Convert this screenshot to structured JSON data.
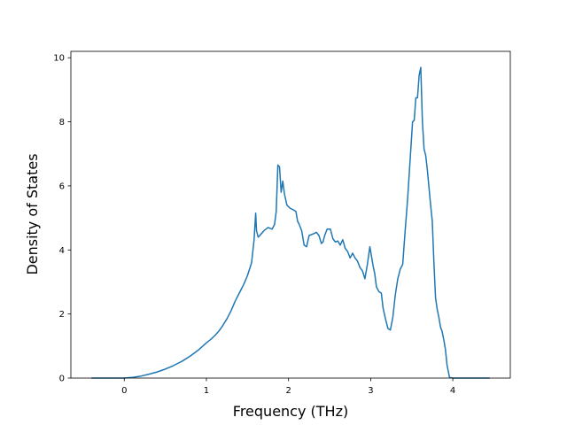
{
  "chart_data": {
    "type": "line",
    "xlabel": "Frequency (THz)",
    "ylabel": "Density of States",
    "xlim": [
      -0.65,
      4.7
    ],
    "ylim": [
      0,
      10.2
    ],
    "xticks": [
      0,
      1,
      2,
      3,
      4
    ],
    "yticks": [
      0,
      2,
      4,
      6,
      8,
      10
    ],
    "grid": false,
    "line_color": "#1f77b4",
    "series": [
      {
        "x": [
          -0.4,
          -0.2,
          0.0,
          0.1,
          0.2,
          0.3,
          0.4,
          0.5,
          0.6,
          0.7,
          0.8,
          0.9,
          1.0,
          1.05,
          1.1,
          1.15,
          1.2,
          1.25,
          1.3,
          1.35,
          1.4,
          1.42,
          1.45,
          1.5,
          1.55,
          1.58,
          1.6,
          1.61,
          1.63,
          1.65,
          1.7,
          1.75,
          1.8,
          1.83,
          1.85,
          1.87,
          1.89,
          1.91,
          1.93,
          1.95,
          1.98,
          2.02,
          2.06,
          2.09,
          2.11,
          2.13,
          2.16,
          2.19,
          2.22,
          2.25,
          2.3,
          2.34,
          2.37,
          2.4,
          2.42,
          2.44,
          2.47,
          2.51,
          2.54,
          2.57,
          2.6,
          2.63,
          2.66,
          2.69,
          2.72,
          2.75,
          2.78,
          2.81,
          2.84,
          2.87,
          2.9,
          2.93,
          2.96,
          2.99,
          3.01,
          3.03,
          3.05,
          3.07,
          3.1,
          3.13,
          3.15,
          3.18,
          3.21,
          3.24,
          3.27,
          3.3,
          3.33,
          3.36,
          3.39,
          3.42,
          3.45,
          3.47,
          3.49,
          3.51,
          3.53,
          3.55,
          3.57,
          3.59,
          3.61,
          3.63,
          3.65,
          3.67,
          3.69,
          3.71,
          3.73,
          3.75,
          3.77,
          3.79,
          3.81,
          3.83,
          3.85,
          3.87,
          3.89,
          3.91,
          3.93,
          3.96,
          4.0,
          4.02,
          4.04,
          4.06,
          4.2,
          4.45
        ],
        "y": [
          0,
          0,
          0,
          0.02,
          0.06,
          0.12,
          0.19,
          0.28,
          0.39,
          0.52,
          0.68,
          0.87,
          1.1,
          1.2,
          1.32,
          1.46,
          1.64,
          1.85,
          2.1,
          2.4,
          2.65,
          2.75,
          2.9,
          3.2,
          3.6,
          4.3,
          5.15,
          4.6,
          4.4,
          4.45,
          4.6,
          4.7,
          4.65,
          4.8,
          5.2,
          6.65,
          6.6,
          5.8,
          6.15,
          5.75,
          5.4,
          5.3,
          5.25,
          5.2,
          4.9,
          4.8,
          4.6,
          4.15,
          4.1,
          4.45,
          4.5,
          4.55,
          4.45,
          4.2,
          4.25,
          4.45,
          4.65,
          4.65,
          4.35,
          4.25,
          4.28,
          4.15,
          4.32,
          4.05,
          3.95,
          3.75,
          3.9,
          3.75,
          3.65,
          3.45,
          3.35,
          3.1,
          3.55,
          4.1,
          3.8,
          3.5,
          3.25,
          2.85,
          2.7,
          2.65,
          2.2,
          1.85,
          1.55,
          1.5,
          1.9,
          2.6,
          3.1,
          3.4,
          3.55,
          4.6,
          5.6,
          6.4,
          7.2,
          8.0,
          8.05,
          8.75,
          8.75,
          9.45,
          9.7,
          8.0,
          7.15,
          6.95,
          6.5,
          5.95,
          5.4,
          4.9,
          3.6,
          2.5,
          2.15,
          1.9,
          1.6,
          1.45,
          1.2,
          0.9,
          0.4,
          0.02,
          0,
          0,
          0,
          0,
          0,
          0
        ]
      }
    ]
  }
}
